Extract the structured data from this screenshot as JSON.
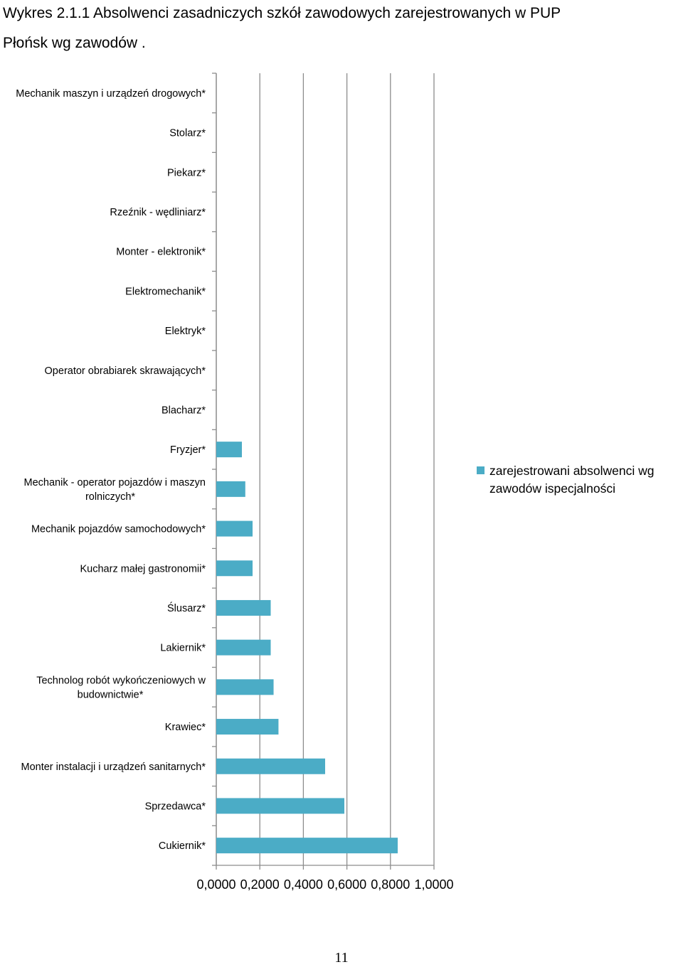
{
  "document": {
    "title_line1": "Wykres 2.1.1 Absolwenci zasadniczych szkół zawodowych zarejestrowanych w PUP",
    "title_line2": "Płońsk wg zawodów .",
    "page_number": "11"
  },
  "chart_data": {
    "type": "bar",
    "orientation": "horizontal",
    "categories": [
      [
        "Mechanik maszyn i urządzeń drogowych*"
      ],
      [
        "Stolarz*"
      ],
      [
        "Piekarz*"
      ],
      [
        "Rzeźnik - wędliniarz*"
      ],
      [
        "Monter - elektronik*"
      ],
      [
        "Elektromechanik*"
      ],
      [
        "Elektryk*"
      ],
      [
        "Operator obrabiarek skrawających*"
      ],
      [
        "Blacharz*"
      ],
      [
        "Fryzjer*"
      ],
      [
        "Mechanik - operator pojazdów i maszyn",
        "rolniczych*"
      ],
      [
        "Mechanik pojazdów samochodowych*"
      ],
      [
        "Kucharz małej gastronomii*"
      ],
      [
        "Ślusarz*"
      ],
      [
        "Lakiernik*"
      ],
      [
        "Technolog robót wykończeniowych w",
        "budownictwie*"
      ],
      [
        "Krawiec*"
      ],
      [
        "Monter instalacji i urządzeń sanitarnych*"
      ],
      [
        "Sprzedawca*"
      ],
      [
        "Cukiernik*"
      ]
    ],
    "series": [
      {
        "name": "zarejestrowani absolwenci wg zawodów ispecjalności",
        "color": "#4bacc6",
        "values": [
          0,
          0,
          0,
          0,
          0,
          0,
          0,
          0,
          0,
          0.1176,
          0.1333,
          0.1667,
          0.1667,
          0.25,
          0.25,
          0.2632,
          0.2857,
          0.5,
          0.5882,
          0.8333
        ]
      }
    ],
    "xlim": [
      0,
      1
    ],
    "xticks": [
      "0,0000",
      "0,2000",
      "0,4000",
      "0,6000",
      "0,8000",
      "1,0000"
    ],
    "grid": true,
    "legend": "right"
  }
}
